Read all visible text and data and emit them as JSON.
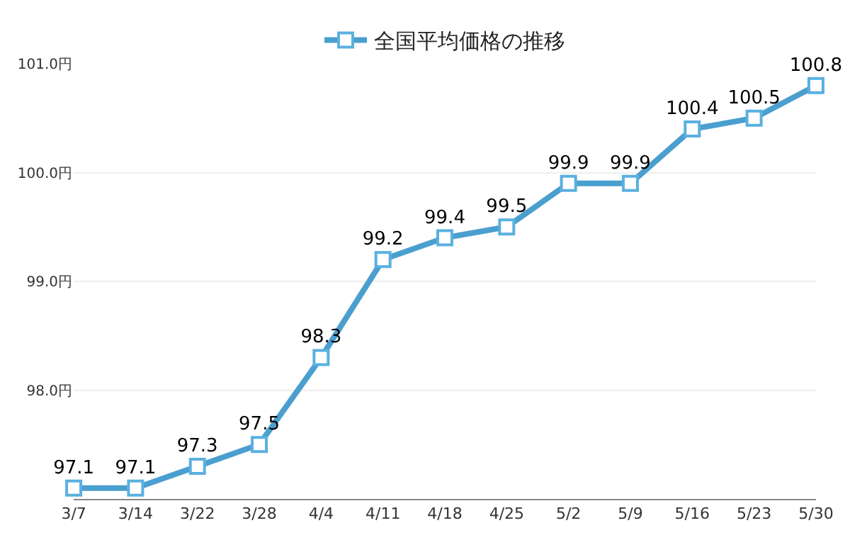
{
  "chart_data": {
    "type": "line",
    "categories": [
      "3/7",
      "3/14",
      "3/22",
      "3/28",
      "4/4",
      "4/11",
      "4/18",
      "4/25",
      "5/2",
      "5/9",
      "5/16",
      "5/23",
      "5/30"
    ],
    "series": [
      {
        "name": "全国平均価格の推移",
        "color": "#4a9fcf",
        "values": [
          97.1,
          97.1,
          97.3,
          97.5,
          98.3,
          99.2,
          99.4,
          99.5,
          99.9,
          99.9,
          100.4,
          100.5,
          100.8
        ]
      }
    ],
    "ylim": [
      97.0,
      101.0
    ],
    "yticks": [
      {
        "value": 98,
        "label": "98.0円"
      },
      {
        "value": 99,
        "label": "99.0円"
      },
      {
        "value": 100,
        "label": "100.0円"
      },
      {
        "value": 101,
        "label": "101.0円"
      }
    ],
    "grid": "y",
    "legend": "top",
    "marker": "square",
    "line_style": "solid",
    "data_labels": true
  }
}
